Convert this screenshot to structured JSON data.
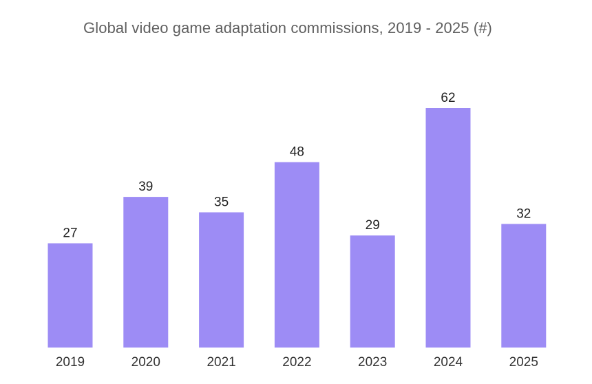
{
  "chart_data": {
    "type": "bar",
    "title": "Global video game adaptation commissions, 2019 - 2025 (#)",
    "xlabel": "",
    "ylabel": "",
    "categories": [
      "2019",
      "2020",
      "2021",
      "2022",
      "2023",
      "2024",
      "2025"
    ],
    "values": [
      27,
      39,
      35,
      48,
      29,
      62,
      32
    ],
    "ylim": [
      0,
      62
    ],
    "grid": false,
    "legend": "none",
    "colors": {
      "bar": "#9d8cf5"
    }
  }
}
